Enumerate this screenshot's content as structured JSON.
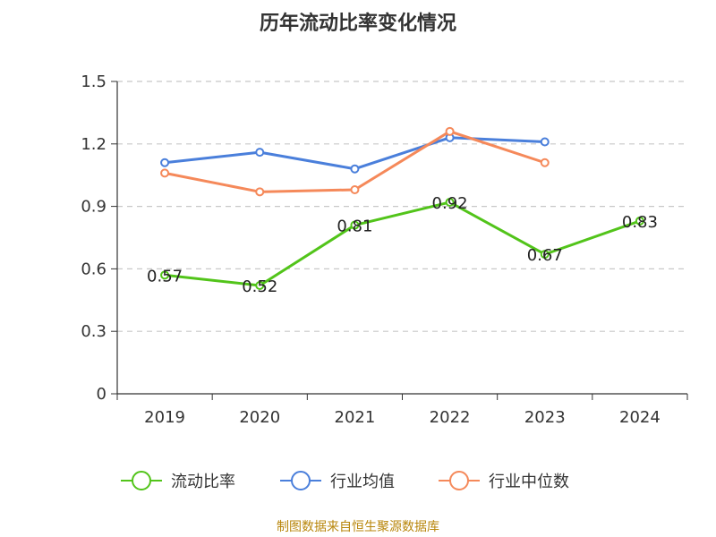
{
  "chart_data": {
    "type": "line",
    "title": "历年流动比率变化情况",
    "categories": [
      "2019",
      "2020",
      "2021",
      "2022",
      "2023",
      "2024"
    ],
    "ylim": [
      0,
      1.5
    ],
    "yticks": [
      "0",
      "0.3",
      "0.6",
      "0.9",
      "1.2",
      "1.5"
    ],
    "grid": true,
    "legend_position": "bottom",
    "series": [
      {
        "name": "流动比率",
        "color": "#52c41a",
        "values": [
          0.57,
          0.52,
          0.81,
          0.92,
          0.67,
          0.83
        ],
        "labels": [
          "0.57",
          "0.52",
          "0.81",
          "0.92",
          "0.67",
          "0.83"
        ]
      },
      {
        "name": "行业均值",
        "color": "#4a7fdb",
        "values": [
          1.11,
          1.16,
          1.08,
          1.23,
          1.21,
          null
        ]
      },
      {
        "name": "行业中位数",
        "color": "#f5895a",
        "values": [
          1.06,
          0.97,
          0.98,
          1.26,
          1.11,
          null
        ]
      }
    ]
  },
  "source": "制图数据来自恒生聚源数据库"
}
